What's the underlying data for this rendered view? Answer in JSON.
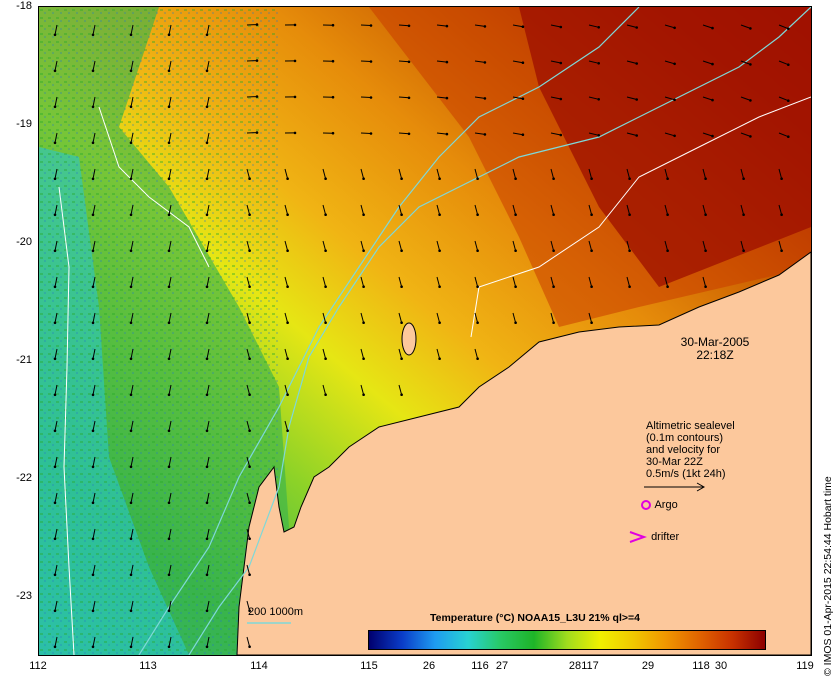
{
  "map": {
    "lon_ticks": [
      "112",
      "113",
      "114",
      "115",
      "116",
      "117",
      "118",
      "119"
    ],
    "lat_ticks": [
      "-18",
      "-19",
      "-20",
      "-21",
      "-22",
      "-23"
    ],
    "lon_range": [
      112,
      119
    ],
    "lat_range": [
      -18,
      -23.5
    ]
  },
  "timestamp": {
    "date": "30-Mar-2005",
    "time": "22:18Z"
  },
  "legend": {
    "line1": "Altimetric sealevel",
    "line2": "(0.1m contours)",
    "line3": "and velocity for",
    "line4": "30-Mar 22Z",
    "line5": "0.5m/s (1kt 24h)",
    "argo_label": "Argo",
    "drifter_label": "drifter"
  },
  "colorbar": {
    "title": "Temperature (°C) NOAA15_L3U 21% ql>=4",
    "ticks": [
      "26",
      "27",
      "28",
      "29",
      "30"
    ],
    "colors": [
      "#00006e",
      "#0a3cc8",
      "#1e9bf0",
      "#28d2d2",
      "#28c864",
      "#1eb428",
      "#a0dc1e",
      "#f0f000",
      "#f0c800",
      "#f09600",
      "#e06400",
      "#c83200",
      "#8c0000"
    ]
  },
  "depth_legend": {
    "label": "200  1000m"
  },
  "credit": "© IMOS 01-Apr-2015 22:54:44 Hobart time",
  "colors": {
    "land": "#fcc89c",
    "isobath": "#7fd8d8",
    "contour": "#ffffff"
  }
}
